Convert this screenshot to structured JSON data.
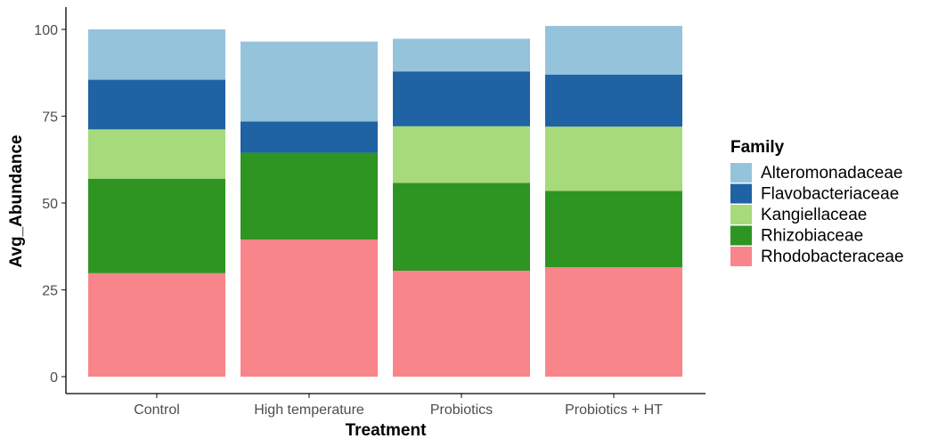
{
  "chart_data": {
    "type": "bar",
    "stacked": true,
    "categories": [
      "Control",
      "High temperature",
      "Probiotics",
      "Probiotics + HT"
    ],
    "xlabel": "Treatment",
    "ylabel": "Avg_Abundance",
    "yticks": [
      0,
      25,
      50,
      75,
      100
    ],
    "ylim": [
      0,
      104
    ],
    "grid": false,
    "legend": {
      "title": "Family",
      "placement": "right"
    },
    "series": [
      {
        "name": "Rhodobacteraceae",
        "color": "#f8858a",
        "values": [
          29.8,
          39.5,
          30.5,
          31.5
        ]
      },
      {
        "name": "Rhizobiaceae",
        "color": "#2e9422",
        "values": [
          27.2,
          25.0,
          25.3,
          22.0
        ]
      },
      {
        "name": "Kangiellaceae",
        "color": "#a6da7a",
        "values": [
          14.2,
          0,
          16.3,
          18.5
        ]
      },
      {
        "name": "Flavobacteriaceae",
        "color": "#1f63a5",
        "values": [
          14.3,
          9.0,
          15.8,
          15.0
        ]
      },
      {
        "name": "Alteromonadaceae",
        "color": "#96c3dc",
        "values": [
          14.5,
          23.0,
          9.4,
          14.0
        ]
      }
    ]
  }
}
